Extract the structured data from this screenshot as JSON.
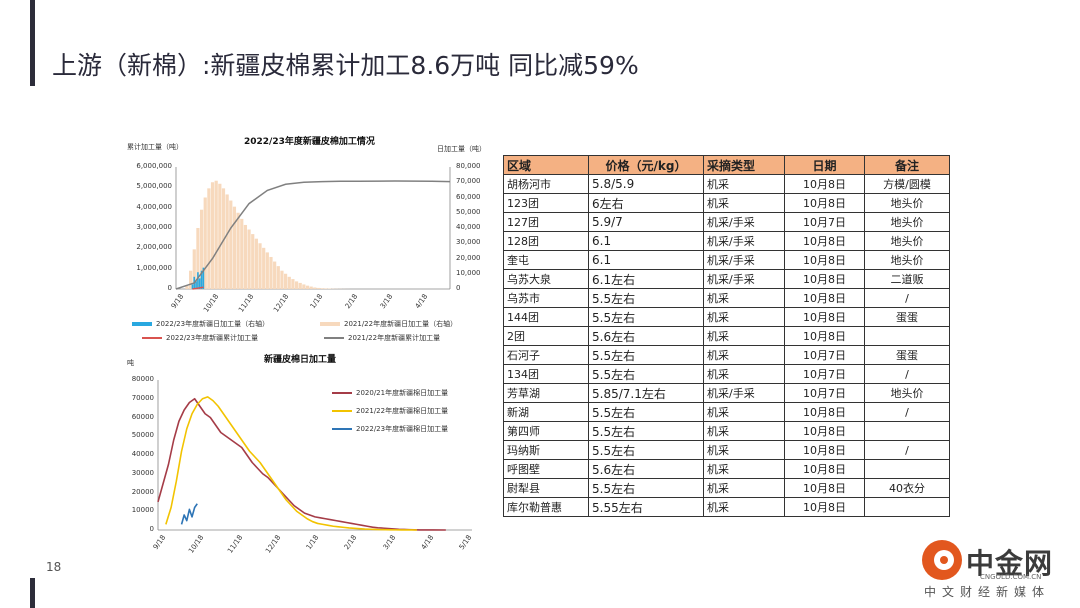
{
  "slide": {
    "title": "上游（新棉）:新疆皮棉累计加工8.6万吨 同比减59%",
    "page_number": "18"
  },
  "logo": {
    "name": "中金网",
    "url": "CNGOLD.COM.CN",
    "tagline": "中文财经新媒体"
  },
  "chart_data": [
    {
      "type": "bar+line",
      "title": "2022/23年度新疆皮棉加工情况",
      "ylabel_left": "累计加工量（吨）",
      "ylabel_right": "日加工量（吨）",
      "y_left_ticks": [
        "6,000,000",
        "5,000,000",
        "4,000,000",
        "3,000,000",
        "2,000,000",
        "1,000,000",
        "0"
      ],
      "y_right_ticks": [
        "80,000",
        "70,000",
        "60,000",
        "50,000",
        "40,000",
        "30,000",
        "20,000",
        "10,000",
        "0"
      ],
      "ylim_left": [
        0,
        6000000
      ],
      "ylim_right": [
        0,
        80000
      ],
      "x_ticks": [
        "9/18",
        "10/18",
        "11/18",
        "12/18",
        "1/18",
        "2/18",
        "3/18",
        "4/18"
      ],
      "legend": [
        {
          "name": "2022/23年度新疆日加工量（右轴）",
          "color": "#29a8e0"
        },
        {
          "name": "2021/22年度新疆日加工量（右轴）",
          "color": "#f7d9bd"
        },
        {
          "name": "2022/23年度新疆累计加工量",
          "color": "#d9534f"
        },
        {
          "name": "2021/22年度新疆累计加工量",
          "color": "#808080"
        }
      ],
      "series_2021_daily_right": {
        "x_day": [
          12,
          16,
          20,
          24,
          28,
          32,
          36,
          40,
          44,
          48,
          52,
          56,
          60,
          64,
          68,
          72,
          76,
          80,
          84,
          88,
          92,
          96,
          100,
          104,
          108,
          112,
          116,
          120,
          124,
          128,
          132,
          136,
          140,
          144,
          148,
          152,
          156,
          160,
          164,
          168,
          172,
          176,
          180,
          184,
          188
        ],
        "values": [
          2000,
          12000,
          26000,
          40000,
          52000,
          60000,
          66000,
          70000,
          71000,
          69000,
          66000,
          62000,
          58000,
          54000,
          50000,
          46000,
          42000,
          39000,
          36000,
          33000,
          30000,
          27000,
          24000,
          21000,
          18000,
          15000,
          12000,
          10000,
          8000,
          6500,
          5000,
          4000,
          3000,
          2200,
          1600,
          1000,
          700,
          500,
          400,
          300,
          200,
          150,
          100,
          60,
          30
        ]
      },
      "series_2021_cumulative_left": {
        "x_day": [
          0,
          20,
          40,
          60,
          80,
          100,
          120,
          140,
          160,
          180,
          200,
          240,
          280,
          300
        ],
        "values": [
          0,
          300000,
          1500000,
          3000000,
          4200000,
          4850000,
          5150000,
          5250000,
          5280000,
          5300000,
          5300000,
          5310000,
          5300000,
          5280000
        ]
      },
      "series_2022_daily_right": {
        "x_day": [
          18,
          20,
          22,
          24,
          26,
          28,
          30
        ],
        "values": [
          3000,
          8000,
          5000,
          11000,
          7000,
          12000,
          14000
        ]
      },
      "series_2022_cumulative_left": {
        "x_day": [
          18,
          24,
          30
        ],
        "values": [
          0,
          40000,
          86000
        ]
      }
    },
    {
      "type": "line",
      "title": "新疆皮棉日加工量",
      "ylabel": "吨",
      "y_ticks": [
        "80000",
        "70000",
        "60000",
        "50000",
        "40000",
        "30000",
        "20000",
        "10000",
        "0"
      ],
      "ylim": [
        0,
        80000
      ],
      "x_ticks": [
        "9/18",
        "10/18",
        "11/18",
        "12/18",
        "1/18",
        "2/18",
        "3/18",
        "4/18",
        "5/18"
      ],
      "series": [
        {
          "name": "2020/21年度新疆棉日加工量",
          "color": "#a53c47",
          "x_day": [
            0,
            4,
            8,
            12,
            16,
            20,
            24,
            28,
            32,
            36,
            40,
            44,
            48,
            52,
            56,
            60,
            64,
            68,
            72,
            76,
            80,
            84,
            88,
            92,
            96,
            100,
            104,
            108,
            112,
            116,
            120,
            124,
            128,
            132,
            136,
            140,
            144,
            148,
            152,
            156,
            160,
            164,
            168,
            172,
            176,
            180,
            184,
            188,
            192,
            196,
            200,
            210,
            220
          ],
          "values": [
            15000,
            25000,
            35000,
            48000,
            58000,
            64000,
            68000,
            70000,
            66000,
            62000,
            60000,
            56000,
            52000,
            50000,
            48000,
            46000,
            44000,
            40000,
            36000,
            33000,
            30000,
            28000,
            25000,
            22000,
            19000,
            16000,
            13000,
            11000,
            9000,
            8000,
            7000,
            6500,
            6000,
            5500,
            5000,
            4500,
            4000,
            3500,
            3000,
            2500,
            2000,
            1500,
            1200,
            1000,
            800,
            600,
            400,
            300,
            200,
            100,
            50,
            20,
            0
          ]
        },
        {
          "name": "2021/22年度新疆棉日加工量",
          "color": "#f2c300",
          "x_day": [
            6,
            10,
            14,
            18,
            22,
            26,
            30,
            34,
            38,
            42,
            46,
            50,
            54,
            58,
            62,
            66,
            70,
            74,
            78,
            82,
            86,
            90,
            94,
            98,
            102,
            106,
            110,
            114,
            118,
            122,
            126,
            130,
            134,
            138,
            142,
            146,
            150,
            154,
            158,
            162,
            166,
            170,
            174,
            178,
            182,
            186,
            190,
            194,
            198
          ],
          "values": [
            3000,
            12000,
            26000,
            42000,
            54000,
            62000,
            67000,
            70000,
            71000,
            69000,
            66000,
            62000,
            58000,
            54000,
            50000,
            46000,
            42000,
            39000,
            36000,
            32000,
            28000,
            24000,
            20000,
            16000,
            13000,
            10000,
            8000,
            6000,
            4500,
            3500,
            3000,
            2500,
            2000,
            1700,
            1400,
            1100,
            900,
            700,
            500,
            400,
            300,
            200,
            150,
            100,
            60,
            40,
            20,
            10,
            0
          ]
        },
        {
          "name": "2022/23年度新疆棉日加工量",
          "color": "#2e75b6",
          "x_day": [
            18,
            20,
            22,
            24,
            26,
            28,
            30
          ],
          "values": [
            3000,
            8000,
            5000,
            11000,
            7000,
            12000,
            14000
          ]
        }
      ]
    }
  ],
  "table": {
    "headers": [
      "区域",
      "价格（元/kg）",
      "采摘类型",
      "日期",
      "备注"
    ],
    "rows": [
      [
        "胡杨河市",
        "5.8/5.9",
        "机采",
        "10月8日",
        "方模/圆模"
      ],
      [
        "123团",
        "6左右",
        "机采",
        "10月8日",
        "地头价"
      ],
      [
        "127团",
        "5.9/7",
        "机采/手采",
        "10月7日",
        "地头价"
      ],
      [
        "128团",
        "6.1",
        "机采/手采",
        "10月8日",
        "地头价"
      ],
      [
        "奎屯",
        "6.1",
        "机采/手采",
        "10月8日",
        "地头价"
      ],
      [
        "乌苏大泉",
        "6.1左右",
        "机采/手采",
        "10月8日",
        "二道贩"
      ],
      [
        "乌苏市",
        "5.5左右",
        "机采",
        "10月8日",
        "/"
      ],
      [
        "144团",
        "5.5左右",
        "机采",
        "10月8日",
        "蛋蛋"
      ],
      [
        "2团",
        "5.6左右",
        "机采",
        "10月8日",
        ""
      ],
      [
        "石河子",
        "5.5左右",
        "机采",
        "10月7日",
        "蛋蛋"
      ],
      [
        "134团",
        "5.5左右",
        "机采",
        "10月7日",
        "/"
      ],
      [
        "芳草湖",
        "5.85/7.1左右",
        "机采/手采",
        "10月7日",
        "地头价"
      ],
      [
        "新湖",
        "5.5左右",
        "机采",
        "10月8日",
        "/"
      ],
      [
        "第四师",
        "5.5左右",
        "机采",
        "10月8日",
        ""
      ],
      [
        "玛纳斯",
        "5.5左右",
        "机采",
        "10月8日",
        "/"
      ],
      [
        "呼图壁",
        "5.6左右",
        "机采",
        "10月8日",
        ""
      ],
      [
        "尉犁县",
        "5.5左右",
        "机采",
        "10月8日",
        "40衣分"
      ],
      [
        "库尔勒普惠",
        "5.55左右",
        "机采",
        "10月8日",
        ""
      ]
    ]
  }
}
